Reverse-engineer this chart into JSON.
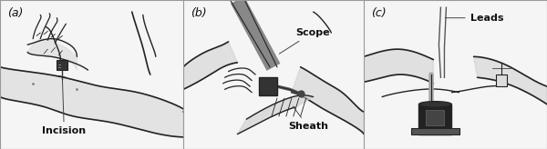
{
  "figsize": [
    6.0,
    1.64
  ],
  "dpi": 100,
  "background_color": "#f5f5f5",
  "panel_bg": "#f0f0f0",
  "panels": [
    "(a)",
    "(b)",
    "(c)"
  ],
  "border_color": "#999999",
  "border_linewidth": 0.8,
  "font_size_panel": 9,
  "font_size_label": 7,
  "panel_label_color": "#111111",
  "annotation_color": "#111111",
  "line_color": "#222222",
  "gray_fill": "#aaaaaa",
  "dark_fill": "#222222",
  "mid_gray": "#888888"
}
